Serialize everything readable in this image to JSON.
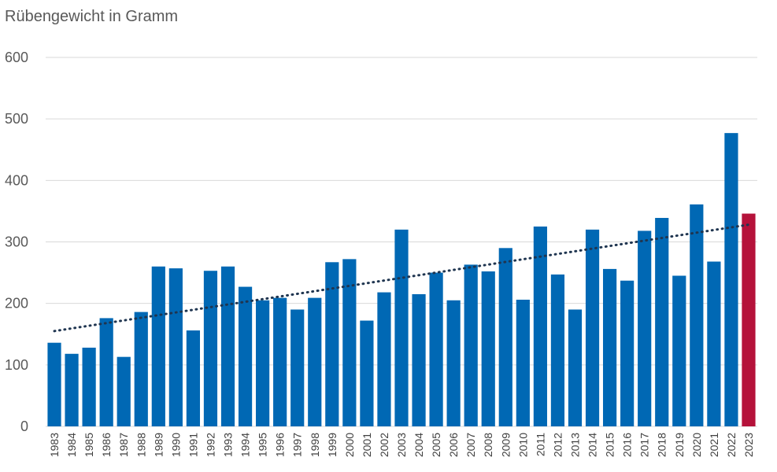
{
  "chart_data": {
    "type": "bar",
    "title": "Rübengewicht in Gramm",
    "categories": [
      "1983",
      "1984",
      "1985",
      "1986",
      "1987",
      "1988",
      "1989",
      "1990",
      "1991",
      "1992",
      "1993",
      "1994",
      "1995",
      "1996",
      "1997",
      "1998",
      "1999",
      "2000",
      "2001",
      "2002",
      "2003",
      "2004",
      "2005",
      "2006",
      "2007",
      "2008",
      "2009",
      "2010",
      "2011",
      "2012",
      "2013",
      "2014",
      "2015",
      "2016",
      "2017",
      "2018",
      "2019",
      "2020",
      "2021",
      "2022",
      "2023"
    ],
    "values": [
      136,
      118,
      128,
      176,
      113,
      186,
      260,
      257,
      156,
      253,
      260,
      227,
      205,
      209,
      190,
      209,
      267,
      272,
      172,
      218,
      320,
      215,
      250,
      205,
      263,
      252,
      290,
      206,
      325,
      247,
      190,
      320,
      256,
      237,
      318,
      339,
      245,
      361,
      268,
      477,
      346
    ],
    "highlight_category": "2023",
    "trendline": {
      "style": "dotted",
      "start": 155,
      "end": 328
    },
    "ylim": [
      0,
      600
    ],
    "yticks": [
      0,
      100,
      200,
      300,
      400,
      500,
      600
    ],
    "grid": true,
    "legend": "none",
    "colors": {
      "bar": "#0068B4",
      "highlight": "#B5123A",
      "trend": "#1F3550",
      "grid": "#D9D9D9"
    }
  }
}
